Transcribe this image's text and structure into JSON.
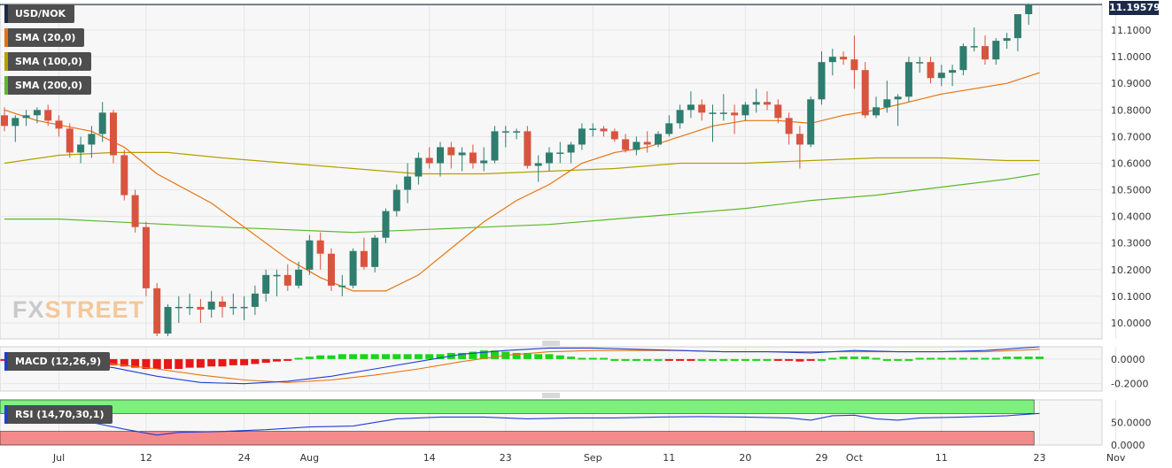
{
  "instrument": "USD/NOK",
  "watermark": {
    "fx": "FX",
    "street": "STREET"
  },
  "last_price": "11.19579",
  "indicators": [
    {
      "label": "SMA (20,0)",
      "color": "#e8730c"
    },
    {
      "label": "SMA (100,0)",
      "color": "#b5a000"
    },
    {
      "label": "SMA (200,0)",
      "color": "#5cb82c"
    }
  ],
  "macd_label": "MACD (12,26,9)",
  "rsi_label": "RSI (14,70,30,1)",
  "colors": {
    "up": "#2e7d6e",
    "down": "#d9543f",
    "grid": "#e6e6e6",
    "panel_bg": "#f7f7f7",
    "rsi_overbought": "#7ef07e",
    "rsi_oversold": "#f58a8a"
  },
  "chart_data": {
    "type": "candlestick",
    "ylim": [
      9.94,
      11.2
    ],
    "y_ticks": [
      "10.0000",
      "10.1000",
      "10.2000",
      "10.3000",
      "10.4000",
      "10.5000",
      "10.6000",
      "10.7000",
      "10.8000",
      "10.9000",
      "11.0000",
      "11.1000"
    ],
    "x_ticks": [
      {
        "label": "Jul",
        "i": 5
      },
      {
        "label": "12",
        "i": 13
      },
      {
        "label": "24",
        "i": 22
      },
      {
        "label": "Aug",
        "i": 28
      },
      {
        "label": "14",
        "i": 39
      },
      {
        "label": "23",
        "i": 46
      },
      {
        "label": "Sep",
        "i": 54
      },
      {
        "label": "11",
        "i": 61
      },
      {
        "label": "20",
        "i": 68
      },
      {
        "label": "29",
        "i": 75
      },
      {
        "label": "Oct",
        "i": 78
      },
      {
        "label": "11",
        "i": 86
      },
      {
        "label": "23",
        "i": 95
      },
      {
        "label": "Nov",
        "i": 102
      }
    ],
    "candles": [
      [
        10.78,
        10.81,
        10.72,
        10.74
      ],
      [
        10.74,
        10.78,
        10.68,
        10.77
      ],
      [
        10.77,
        10.8,
        10.74,
        10.78
      ],
      [
        10.78,
        10.81,
        10.75,
        10.8
      ],
      [
        10.8,
        10.82,
        10.74,
        10.76
      ],
      [
        10.76,
        10.78,
        10.7,
        10.73
      ],
      [
        10.73,
        10.75,
        10.62,
        10.64
      ],
      [
        10.64,
        10.7,
        10.6,
        10.67
      ],
      [
        10.67,
        10.74,
        10.62,
        10.71
      ],
      [
        10.71,
        10.83,
        10.68,
        10.79
      ],
      [
        10.79,
        10.8,
        10.6,
        10.63
      ],
      [
        10.63,
        10.65,
        10.46,
        10.48
      ],
      [
        10.48,
        10.5,
        10.34,
        10.36
      ],
      [
        10.36,
        10.38,
        10.1,
        10.13
      ],
      [
        10.13,
        10.15,
        9.95,
        9.96
      ],
      [
        9.96,
        10.07,
        9.95,
        10.06
      ],
      [
        10.06,
        10.1,
        10.0,
        10.06
      ],
      [
        10.06,
        10.11,
        10.03,
        10.06
      ],
      [
        10.06,
        10.09,
        10.0,
        10.05
      ],
      [
        10.05,
        10.12,
        10.02,
        10.08
      ],
      [
        10.08,
        10.1,
        10.02,
        10.06
      ],
      [
        10.06,
        10.11,
        10.03,
        10.06
      ],
      [
        10.06,
        10.1,
        10.01,
        10.06
      ],
      [
        10.06,
        10.14,
        10.03,
        10.11
      ],
      [
        10.11,
        10.2,
        10.08,
        10.18
      ],
      [
        10.18,
        10.2,
        10.1,
        10.18
      ],
      [
        10.18,
        10.22,
        10.12,
        10.14
      ],
      [
        10.14,
        10.23,
        10.13,
        10.2
      ],
      [
        10.2,
        10.33,
        10.18,
        10.31
      ],
      [
        10.31,
        10.34,
        10.2,
        10.26
      ],
      [
        10.26,
        10.28,
        10.12,
        10.14
      ],
      [
        10.14,
        10.18,
        10.1,
        10.14
      ],
      [
        10.14,
        10.28,
        10.13,
        10.27
      ],
      [
        10.27,
        10.32,
        10.2,
        10.21
      ],
      [
        10.21,
        10.33,
        10.19,
        10.32
      ],
      [
        10.32,
        10.43,
        10.3,
        10.42
      ],
      [
        10.42,
        10.52,
        10.4,
        10.5
      ],
      [
        10.5,
        10.6,
        10.45,
        10.55
      ],
      [
        10.55,
        10.64,
        10.52,
        10.62
      ],
      [
        10.62,
        10.66,
        10.58,
        10.6
      ],
      [
        10.6,
        10.68,
        10.55,
        10.66
      ],
      [
        10.66,
        10.68,
        10.58,
        10.63
      ],
      [
        10.63,
        10.66,
        10.57,
        10.64
      ],
      [
        10.64,
        10.67,
        10.58,
        10.6
      ],
      [
        10.6,
        10.66,
        10.57,
        10.61
      ],
      [
        10.61,
        10.74,
        10.6,
        10.72
      ],
      [
        10.72,
        10.74,
        10.66,
        10.72
      ],
      [
        10.72,
        10.73,
        10.69,
        10.72
      ],
      [
        10.72,
        10.74,
        10.58,
        10.59
      ],
      [
        10.59,
        10.63,
        10.53,
        10.6
      ],
      [
        10.6,
        10.66,
        10.57,
        10.64
      ],
      [
        10.64,
        10.68,
        10.6,
        10.64
      ],
      [
        10.64,
        10.68,
        10.6,
        10.67
      ],
      [
        10.67,
        10.75,
        10.65,
        10.73
      ],
      [
        10.73,
        10.75,
        10.7,
        10.73
      ],
      [
        10.73,
        10.74,
        10.7,
        10.72
      ],
      [
        10.72,
        10.73,
        10.68,
        10.69
      ],
      [
        10.69,
        10.71,
        10.64,
        10.65
      ],
      [
        10.65,
        10.7,
        10.63,
        10.68
      ],
      [
        10.68,
        10.72,
        10.64,
        10.67
      ],
      [
        10.67,
        10.72,
        10.66,
        10.71
      ],
      [
        10.71,
        10.78,
        10.7,
        10.75
      ],
      [
        10.75,
        10.82,
        10.73,
        10.8
      ],
      [
        10.8,
        10.87,
        10.77,
        10.82
      ],
      [
        10.82,
        10.84,
        10.76,
        10.79
      ],
      [
        10.79,
        10.82,
        10.68,
        10.79
      ],
      [
        10.79,
        10.86,
        10.76,
        10.79
      ],
      [
        10.79,
        10.82,
        10.71,
        10.78
      ],
      [
        10.78,
        10.83,
        10.76,
        10.82
      ],
      [
        10.82,
        10.88,
        10.79,
        10.83
      ],
      [
        10.83,
        10.87,
        10.8,
        10.82
      ],
      [
        10.82,
        10.84,
        10.75,
        10.77
      ],
      [
        10.77,
        10.79,
        10.67,
        10.71
      ],
      [
        10.71,
        10.74,
        10.58,
        10.67
      ],
      [
        10.67,
        10.85,
        10.66,
        10.84
      ],
      [
        10.84,
        11.02,
        10.82,
        10.98
      ],
      [
        10.98,
        11.03,
        10.93,
        11.0
      ],
      [
        11.0,
        11.02,
        10.97,
        10.99
      ],
      [
        10.99,
        11.08,
        10.88,
        10.95
      ],
      [
        10.95,
        10.98,
        10.77,
        10.78
      ],
      [
        10.78,
        10.85,
        10.77,
        10.81
      ],
      [
        10.81,
        10.91,
        10.79,
        10.84
      ],
      [
        10.84,
        10.86,
        10.74,
        10.85
      ],
      [
        10.85,
        11.0,
        10.83,
        10.98
      ],
      [
        10.98,
        11.0,
        10.94,
        10.98
      ],
      [
        10.98,
        11.0,
        10.9,
        10.92
      ],
      [
        10.92,
        10.97,
        10.89,
        10.94
      ],
      [
        10.94,
        10.97,
        10.89,
        10.95
      ],
      [
        10.95,
        11.05,
        10.93,
        11.04
      ],
      [
        11.04,
        11.11,
        11.02,
        11.04
      ],
      [
        11.04,
        11.08,
        10.97,
        10.99
      ],
      [
        10.99,
        11.07,
        10.97,
        11.06
      ],
      [
        11.06,
        11.09,
        11.03,
        11.07
      ],
      [
        11.07,
        11.16,
        11.02,
        11.16
      ],
      [
        11.16,
        11.2,
        11.12,
        11.196
      ]
    ],
    "sma20": [
      [
        0,
        10.8
      ],
      [
        3,
        10.76
      ],
      [
        8,
        10.72
      ],
      [
        11,
        10.66
      ],
      [
        14,
        10.56
      ],
      [
        19,
        10.45
      ],
      [
        23,
        10.33
      ],
      [
        26,
        10.24
      ],
      [
        29,
        10.17
      ],
      [
        32,
        10.12
      ],
      [
        35,
        10.12
      ],
      [
        38,
        10.18
      ],
      [
        41,
        10.28
      ],
      [
        44,
        10.38
      ],
      [
        47,
        10.46
      ],
      [
        50,
        10.52
      ],
      [
        53,
        10.6
      ],
      [
        56,
        10.64
      ],
      [
        59,
        10.66
      ],
      [
        62,
        10.7
      ],
      [
        65,
        10.74
      ],
      [
        68,
        10.76
      ],
      [
        71,
        10.76
      ],
      [
        74,
        10.75
      ],
      [
        77,
        10.78
      ],
      [
        80,
        10.8
      ],
      [
        83,
        10.83
      ],
      [
        86,
        10.86
      ],
      [
        89,
        10.88
      ],
      [
        92,
        10.9
      ],
      [
        95,
        10.94
      ]
    ],
    "sma100": [
      [
        0,
        10.6
      ],
      [
        5,
        10.63
      ],
      [
        10,
        10.64
      ],
      [
        15,
        10.64
      ],
      [
        20,
        10.62
      ],
      [
        26,
        10.6
      ],
      [
        32,
        10.58
      ],
      [
        38,
        10.56
      ],
      [
        44,
        10.56
      ],
      [
        50,
        10.57
      ],
      [
        56,
        10.58
      ],
      [
        62,
        10.6
      ],
      [
        68,
        10.6
      ],
      [
        74,
        10.61
      ],
      [
        80,
        10.62
      ],
      [
        86,
        10.62
      ],
      [
        92,
        10.61
      ],
      [
        95,
        10.61
      ]
    ],
    "sma200": [
      [
        0,
        10.39
      ],
      [
        5,
        10.39
      ],
      [
        10,
        10.38
      ],
      [
        15,
        10.37
      ],
      [
        20,
        10.36
      ],
      [
        26,
        10.35
      ],
      [
        32,
        10.34
      ],
      [
        38,
        10.35
      ],
      [
        44,
        10.36
      ],
      [
        50,
        10.37
      ],
      [
        56,
        10.39
      ],
      [
        62,
        10.41
      ],
      [
        68,
        10.43
      ],
      [
        74,
        10.46
      ],
      [
        80,
        10.48
      ],
      [
        86,
        10.51
      ],
      [
        92,
        10.54
      ],
      [
        95,
        10.56
      ]
    ],
    "macd": {
      "y_ticks": [
        "0.0000",
        "-0.2000"
      ],
      "ylim": [
        -0.26,
        0.1
      ],
      "histogram": [
        -0.01,
        -0.01,
        -0.01,
        -0.02,
        -0.02,
        -0.02,
        -0.03,
        -0.03,
        -0.04,
        -0.05,
        -0.05,
        -0.06,
        -0.07,
        -0.08,
        -0.08,
        -0.08,
        -0.08,
        -0.07,
        -0.07,
        -0.06,
        -0.06,
        -0.05,
        -0.05,
        -0.04,
        -0.03,
        -0.02,
        -0.01,
        0.01,
        0.02,
        0.03,
        0.03,
        0.04,
        0.04,
        0.04,
        0.04,
        0.04,
        0.04,
        0.04,
        0.04,
        0.04,
        0.04,
        0.05,
        0.05,
        0.06,
        0.07,
        0.07,
        0.06,
        0.05,
        0.05,
        0.04,
        0.04,
        0.03,
        0.02,
        0.01,
        0.01,
        0.01,
        0.0,
        0.0,
        0.0,
        0.0,
        0.0,
        -0.01,
        -0.01,
        -0.01,
        0.0,
        0.0,
        0.0,
        0.0,
        0.0,
        0.0,
        0.0,
        -0.01,
        -0.01,
        -0.02,
        -0.01,
        0.0,
        0.01,
        0.02,
        0.02,
        0.02,
        0.01,
        0.0,
        0.0,
        0.0,
        0.01,
        0.01,
        0.01,
        0.01,
        0.01,
        0.01,
        0.01,
        0.01,
        0.02,
        0.02,
        0.02,
        0.02
      ],
      "macd": [
        [
          0,
          0.0
        ],
        [
          6,
          -0.03
        ],
        [
          10,
          -0.07
        ],
        [
          14,
          -0.14
        ],
        [
          18,
          -0.19
        ],
        [
          22,
          -0.2
        ],
        [
          26,
          -0.18
        ],
        [
          30,
          -0.14
        ],
        [
          34,
          -0.08
        ],
        [
          38,
          -0.02
        ],
        [
          42,
          0.04
        ],
        [
          46,
          0.07
        ],
        [
          50,
          0.09
        ],
        [
          54,
          0.09
        ],
        [
          58,
          0.08
        ],
        [
          62,
          0.07
        ],
        [
          66,
          0.06
        ],
        [
          70,
          0.06
        ],
        [
          74,
          0.05
        ],
        [
          78,
          0.07
        ],
        [
          82,
          0.06
        ],
        [
          86,
          0.06
        ],
        [
          90,
          0.07
        ],
        [
          95,
          0.1
        ]
      ],
      "signal": [
        [
          0,
          0.0
        ],
        [
          6,
          -0.01
        ],
        [
          10,
          -0.04
        ],
        [
          14,
          -0.08
        ],
        [
          18,
          -0.13
        ],
        [
          22,
          -0.17
        ],
        [
          26,
          -0.19
        ],
        [
          30,
          -0.17
        ],
        [
          34,
          -0.13
        ],
        [
          38,
          -0.08
        ],
        [
          42,
          -0.02
        ],
        [
          46,
          0.03
        ],
        [
          50,
          0.06
        ],
        [
          54,
          0.07
        ],
        [
          58,
          0.07
        ],
        [
          62,
          0.07
        ],
        [
          66,
          0.06
        ],
        [
          70,
          0.06
        ],
        [
          74,
          0.06
        ],
        [
          78,
          0.06
        ],
        [
          82,
          0.06
        ],
        [
          86,
          0.06
        ],
        [
          90,
          0.06
        ],
        [
          95,
          0.08
        ]
      ]
    },
    "rsi": {
      "y_ticks": [
        "50.0000",
        "0.0000"
      ],
      "ylim": [
        0,
        100
      ],
      "overbought": 70,
      "oversold": 30,
      "values": [
        [
          0,
          55
        ],
        [
          4,
          52
        ],
        [
          8,
          50
        ],
        [
          11,
          35
        ],
        [
          14,
          22
        ],
        [
          16,
          28
        ],
        [
          20,
          30
        ],
        [
          24,
          34
        ],
        [
          28,
          40
        ],
        [
          32,
          42
        ],
        [
          36,
          58
        ],
        [
          40,
          62
        ],
        [
          44,
          62
        ],
        [
          48,
          58
        ],
        [
          52,
          60
        ],
        [
          56,
          60
        ],
        [
          60,
          62
        ],
        [
          64,
          63
        ],
        [
          68,
          62
        ],
        [
          72,
          60
        ],
        [
          74,
          55
        ],
        [
          76,
          65
        ],
        [
          78,
          66
        ],
        [
          80,
          58
        ],
        [
          82,
          55
        ],
        [
          84,
          60
        ],
        [
          88,
          62
        ],
        [
          92,
          65
        ],
        [
          95,
          70
        ]
      ]
    }
  }
}
